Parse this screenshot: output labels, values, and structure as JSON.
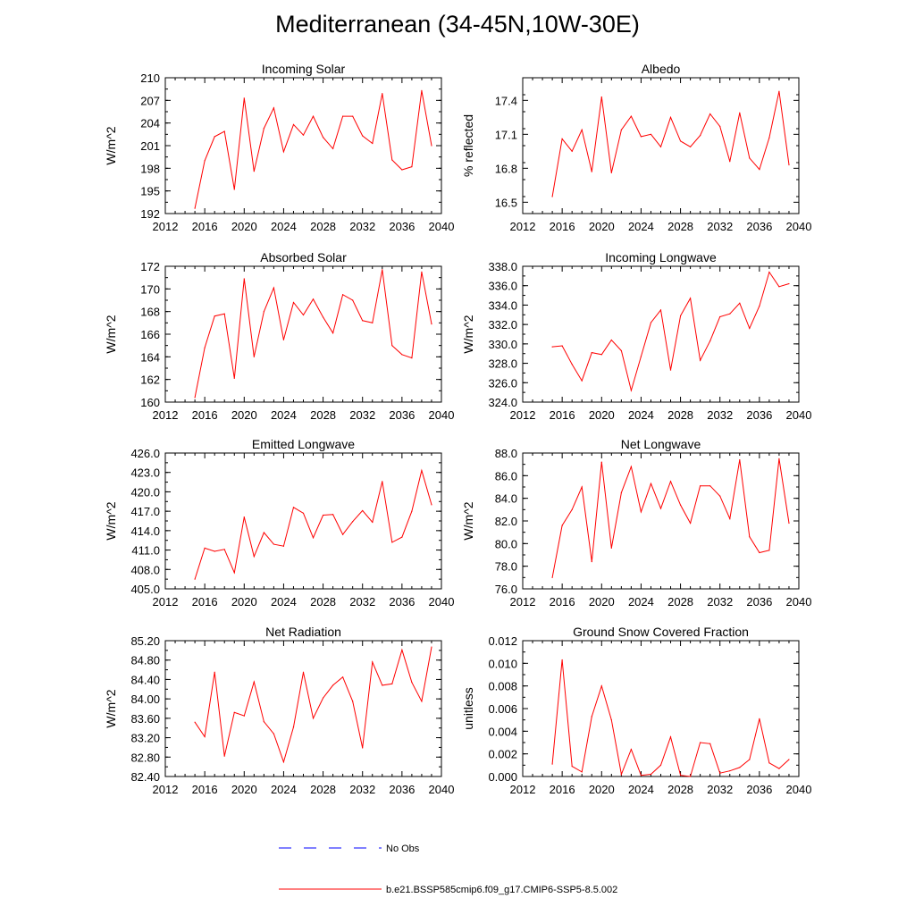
{
  "title": "Mediterranean (34-45N,10W-30E)",
  "legend": [
    {
      "label": "No Obs",
      "style": "dashed",
      "color": "#0000ff"
    },
    {
      "label": "b.e21.BSSP585cmip6.f09_g17.CMIP6-SSP5-8.5.002",
      "style": "solid",
      "color": "#ff0000"
    }
  ],
  "chart_data": [
    {
      "type": "line",
      "title": "Incoming Solar",
      "ylabel": "W/m^2",
      "xlim": [
        2012,
        2040
      ],
      "xticks": [
        "2012",
        "2016",
        "2020",
        "2024",
        "2028",
        "2032",
        "2036",
        "2040"
      ],
      "ylim": [
        192,
        210
      ],
      "yticks": [
        "192",
        "195",
        "198",
        "201",
        "204",
        "207",
        "210"
      ],
      "x": [
        2015,
        2016,
        2017,
        2018,
        2019,
        2020,
        2021,
        2022,
        2023,
        2024,
        2025,
        2026,
        2027,
        2028,
        2029,
        2030,
        2031,
        2032,
        2033,
        2034,
        2035,
        2036,
        2037,
        2038,
        2039
      ],
      "series": [
        {
          "name": "b.e21.BSSP585cmip6.f09_g17.CMIP6-SSP5-8.5.002",
          "color": "#ff0000",
          "values": [
            192.7,
            199.0,
            202.2,
            202.9,
            195.2,
            207.3,
            197.6,
            203.3,
            206.0,
            200.2,
            203.8,
            202.4,
            204.9,
            202.1,
            200.6,
            204.9,
            204.9,
            202.3,
            201.3,
            207.9,
            199.1,
            197.8,
            198.2,
            208.3,
            201.0
          ]
        }
      ]
    },
    {
      "type": "line",
      "title": "Albedo",
      "ylabel": "% reflected",
      "xlim": [
        2012,
        2040
      ],
      "xticks": [
        "2012",
        "2016",
        "2020",
        "2024",
        "2028",
        "2032",
        "2036",
        "2040"
      ],
      "ylim": [
        16.4,
        17.6
      ],
      "yticks": [
        "16.5",
        "16.8",
        "17.1",
        "17.4"
      ],
      "ytick_values": [
        16.5,
        16.8,
        17.1,
        17.4
      ],
      "x": [
        2015,
        2016,
        2017,
        2018,
        2019,
        2020,
        2021,
        2022,
        2023,
        2024,
        2025,
        2026,
        2027,
        2028,
        2029,
        2030,
        2031,
        2032,
        2033,
        2034,
        2035,
        2036,
        2037,
        2038,
        2039
      ],
      "series": [
        {
          "name": "b.e21.BSSP585cmip6.f09_g17.CMIP6-SSP5-8.5.002",
          "color": "#ff0000",
          "values": [
            16.55,
            17.06,
            16.95,
            17.14,
            16.77,
            17.43,
            16.76,
            17.14,
            17.26,
            17.08,
            17.1,
            16.99,
            17.25,
            17.04,
            16.99,
            17.09,
            17.28,
            17.17,
            16.86,
            17.29,
            16.89,
            16.79,
            17.07,
            17.48,
            16.83
          ]
        }
      ]
    },
    {
      "type": "line",
      "title": "Absorbed Solar",
      "ylabel": "W/m^2",
      "xlim": [
        2012,
        2040
      ],
      "xticks": [
        "2012",
        "2016",
        "2020",
        "2024",
        "2028",
        "2032",
        "2036",
        "2040"
      ],
      "ylim": [
        160,
        172
      ],
      "yticks": [
        "160",
        "162",
        "164",
        "166",
        "168",
        "170",
        "172"
      ],
      "x": [
        2015,
        2016,
        2017,
        2018,
        2019,
        2020,
        2021,
        2022,
        2023,
        2024,
        2025,
        2026,
        2027,
        2028,
        2029,
        2030,
        2031,
        2032,
        2033,
        2034,
        2035,
        2036,
        2037,
        2038,
        2039
      ],
      "series": [
        {
          "name": "b.e21.BSSP585cmip6.f09_g17.CMIP6-SSP5-8.5.002",
          "color": "#ff0000",
          "values": [
            160.4,
            164.8,
            167.6,
            167.8,
            162.1,
            170.9,
            164.0,
            168.0,
            170.1,
            165.5,
            168.8,
            167.7,
            169.1,
            167.5,
            166.1,
            169.5,
            169.0,
            167.2,
            167.0,
            171.7,
            165.0,
            164.2,
            163.9,
            171.5,
            166.9
          ]
        }
      ]
    },
    {
      "type": "line",
      "title": "Incoming Longwave",
      "ylabel": "W/m^2",
      "xlim": [
        2012,
        2040
      ],
      "xticks": [
        "2012",
        "2016",
        "2020",
        "2024",
        "2028",
        "2032",
        "2036",
        "2040"
      ],
      "ylim": [
        324,
        338
      ],
      "yticks": [
        "324.0",
        "326.0",
        "328.0",
        "330.0",
        "332.0",
        "334.0",
        "336.0",
        "338.0"
      ],
      "x": [
        2015,
        2016,
        2017,
        2018,
        2019,
        2020,
        2021,
        2022,
        2023,
        2024,
        2025,
        2026,
        2027,
        2028,
        2029,
        2030,
        2031,
        2032,
        2033,
        2034,
        2035,
        2036,
        2037,
        2038,
        2039
      ],
      "series": [
        {
          "name": "b.e21.BSSP585cmip6.f09_g17.CMIP6-SSP5-8.5.002",
          "color": "#ff0000",
          "values": [
            329.7,
            329.8,
            327.9,
            326.2,
            329.1,
            328.9,
            330.4,
            329.3,
            325.2,
            328.7,
            332.2,
            333.5,
            327.3,
            332.9,
            334.7,
            328.3,
            330.3,
            332.8,
            333.1,
            334.2,
            331.6,
            333.9,
            337.4,
            335.9,
            336.2
          ]
        }
      ]
    },
    {
      "type": "line",
      "title": "Emitted Longwave",
      "ylabel": "W/m^2",
      "xlim": [
        2012,
        2040
      ],
      "xticks": [
        "2012",
        "2016",
        "2020",
        "2024",
        "2028",
        "2032",
        "2036",
        "2040"
      ],
      "ylim": [
        405,
        426
      ],
      "yticks": [
        "405.0",
        "408.0",
        "411.0",
        "414.0",
        "417.0",
        "420.0",
        "423.0",
        "426.0"
      ],
      "x": [
        2015,
        2016,
        2017,
        2018,
        2019,
        2020,
        2021,
        2022,
        2023,
        2024,
        2025,
        2026,
        2027,
        2028,
        2029,
        2030,
        2031,
        2032,
        2033,
        2034,
        2035,
        2036,
        2037,
        2038,
        2039
      ],
      "series": [
        {
          "name": "b.e21.BSSP585cmip6.f09_g17.CMIP6-SSP5-8.5.002",
          "color": "#ff0000",
          "values": [
            406.5,
            411.3,
            410.8,
            411.1,
            407.5,
            416.1,
            410.0,
            413.7,
            411.9,
            411.6,
            417.6,
            416.7,
            412.9,
            416.4,
            416.5,
            413.4,
            415.4,
            417.1,
            415.3,
            421.6,
            412.2,
            413.0,
            417.0,
            423.3,
            418.0
          ]
        }
      ]
    },
    {
      "type": "line",
      "title": "Net Longwave",
      "ylabel": "W/m^2",
      "xlim": [
        2012,
        2040
      ],
      "xticks": [
        "2012",
        "2016",
        "2020",
        "2024",
        "2028",
        "2032",
        "2036",
        "2040"
      ],
      "ylim": [
        76,
        88
      ],
      "yticks": [
        "76.0",
        "78.0",
        "80.0",
        "82.0",
        "84.0",
        "86.0",
        "88.0"
      ],
      "x": [
        2015,
        2016,
        2017,
        2018,
        2019,
        2020,
        2021,
        2022,
        2023,
        2024,
        2025,
        2026,
        2027,
        2028,
        2029,
        2030,
        2031,
        2032,
        2033,
        2034,
        2035,
        2036,
        2037,
        2038,
        2039
      ],
      "series": [
        {
          "name": "b.e21.BSSP585cmip6.f09_g17.CMIP6-SSP5-8.5.002",
          "color": "#ff0000",
          "values": [
            77.0,
            81.6,
            83.0,
            85.0,
            78.4,
            87.2,
            79.6,
            84.5,
            86.8,
            82.8,
            85.3,
            83.1,
            85.5,
            83.4,
            81.8,
            85.1,
            85.1,
            84.2,
            82.2,
            87.4,
            80.6,
            79.2,
            79.4,
            87.5,
            81.8
          ]
        }
      ]
    },
    {
      "type": "line",
      "title": "Net Radiation",
      "ylabel": "W/m^2",
      "xlim": [
        2012,
        2040
      ],
      "xticks": [
        "2012",
        "2016",
        "2020",
        "2024",
        "2028",
        "2032",
        "2036",
        "2040"
      ],
      "ylim": [
        82.4,
        85.2
      ],
      "yticks": [
        "82.40",
        "82.80",
        "83.20",
        "83.60",
        "84.00",
        "84.40",
        "84.80",
        "85.20"
      ],
      "x": [
        2015,
        2016,
        2017,
        2018,
        2019,
        2020,
        2021,
        2022,
        2023,
        2024,
        2025,
        2026,
        2027,
        2028,
        2029,
        2030,
        2031,
        2032,
        2033,
        2034,
        2035,
        2036,
        2037,
        2038,
        2039
      ],
      "series": [
        {
          "name": "b.e21.BSSP585cmip6.f09_g17.CMIP6-SSP5-8.5.002",
          "color": "#ff0000",
          "values": [
            83.52,
            83.22,
            84.55,
            82.82,
            83.72,
            83.65,
            84.35,
            83.53,
            83.28,
            82.7,
            83.42,
            84.55,
            83.6,
            84.02,
            84.28,
            84.45,
            83.95,
            82.99,
            84.76,
            84.28,
            84.31,
            85.01,
            84.34,
            83.95,
            85.07
          ]
        }
      ]
    },
    {
      "type": "line",
      "title": "Ground Snow Covered Fraction",
      "ylabel": "unitless",
      "xlim": [
        2012,
        2040
      ],
      "xticks": [
        "2012",
        "2016",
        "2020",
        "2024",
        "2028",
        "2032",
        "2036",
        "2040"
      ],
      "ylim": [
        0,
        0.012
      ],
      "yticks": [
        "0.000",
        "0.002",
        "0.004",
        "0.006",
        "0.008",
        "0.010",
        "0.012"
      ],
      "x": [
        2015,
        2016,
        2017,
        2018,
        2019,
        2020,
        2021,
        2022,
        2023,
        2024,
        2025,
        2026,
        2027,
        2028,
        2029,
        2030,
        2031,
        2032,
        2033,
        2034,
        2035,
        2036,
        2037,
        2038,
        2039
      ],
      "series": [
        {
          "name": "b.e21.BSSP585cmip6.f09_g17.CMIP6-SSP5-8.5.002",
          "color": "#ff0000",
          "values": [
            0.0011,
            0.0103,
            0.0009,
            0.0004,
            0.0053,
            0.008,
            0.005,
            0.0002,
            0.0024,
            0.0001,
            0.0002,
            0.001,
            0.0035,
            0.0001,
            0.0,
            0.003,
            0.0029,
            0.0003,
            0.0005,
            0.0008,
            0.0015,
            0.0051,
            0.0012,
            0.0007,
            0.0015
          ]
        }
      ]
    }
  ]
}
